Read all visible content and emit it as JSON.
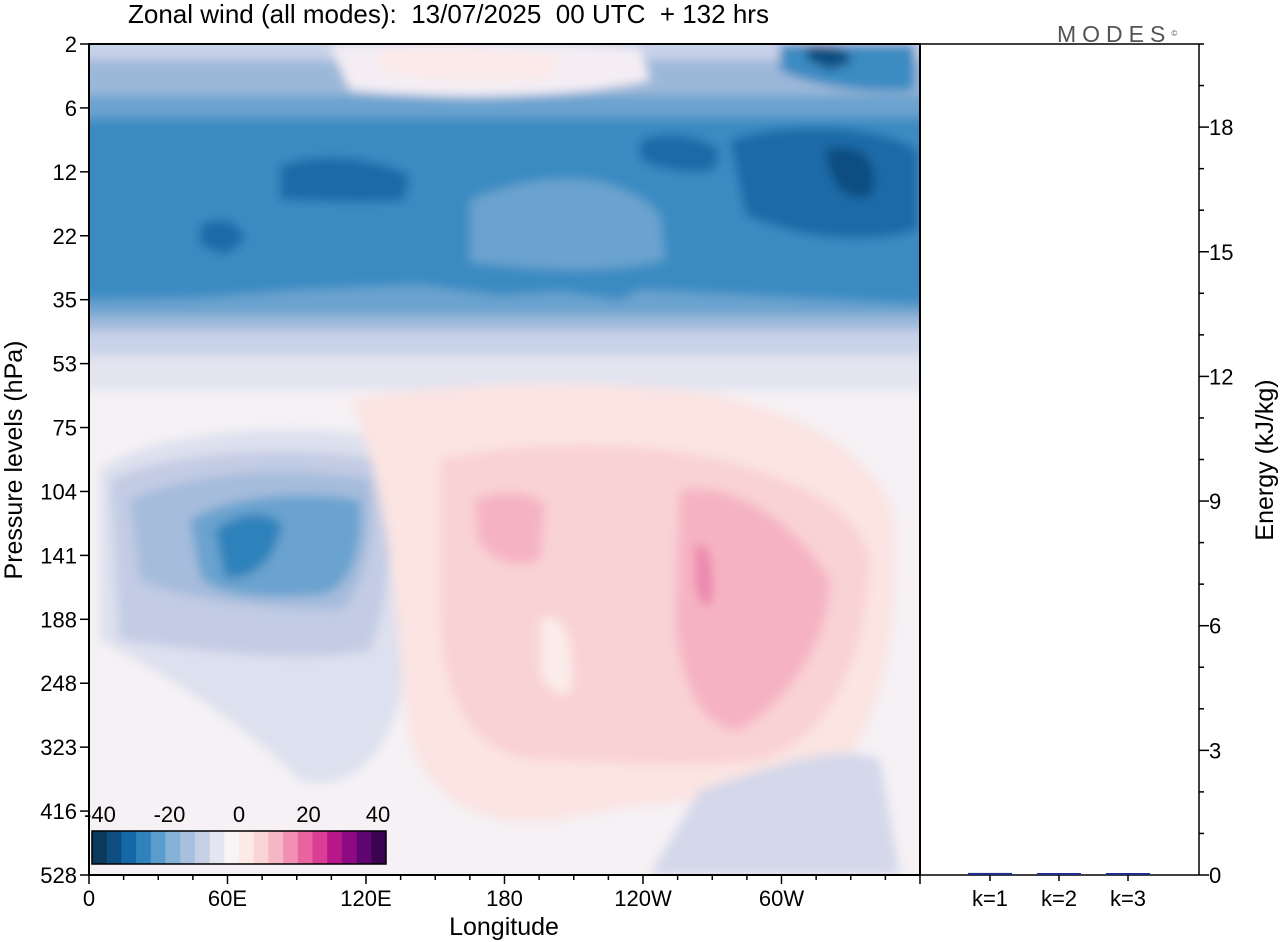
{
  "title": "Zonal wind (all modes):  13/07/2025  00 UTC  + 132 hrs",
  "brand": "MODES",
  "brand_mark": "©",
  "chart_data": [
    {
      "type": "heatmap",
      "variable": "Zonal wind",
      "xlabel": "Longitude",
      "ylabel": "Pressure levels (hPa)",
      "x_ticks": [
        "0",
        "60E",
        "120E",
        "180",
        "120W",
        "60W"
      ],
      "x_tick_degrees": [
        0,
        60,
        120,
        180,
        240,
        300
      ],
      "xlim": [
        0,
        360
      ],
      "y_ticks": [
        2,
        6,
        12,
        22,
        35,
        53,
        75,
        104,
        141,
        188,
        248,
        323,
        416,
        528
      ],
      "colorbar": {
        "tick_labels": [
          "-40",
          "-20",
          "0",
          "20",
          "40"
        ],
        "colors": [
          "#0b3a5c",
          "#0d4d80",
          "#1468a8",
          "#2f82bb",
          "#5a9dcc",
          "#86b2d8",
          "#a8c0e0",
          "#c5cfe6",
          "#e6e6f2",
          "#f7f3f7",
          "#fde9e6",
          "#fbd4d6",
          "#f7b6c4",
          "#f190b2",
          "#e7649f",
          "#d93d94",
          "#b8178a",
          "#8e0a82",
          "#5f056f",
          "#3b0452"
        ]
      }
    },
    {
      "type": "bar",
      "ylabel": "Energy (kJ/kg)",
      "categories": [
        "k=1",
        "k=2",
        "k=3"
      ],
      "values": [
        0.05,
        0.02,
        0.02
      ],
      "ylim": [
        0,
        20
      ],
      "y_ticks": [
        0,
        3,
        6,
        9,
        12,
        15,
        18
      ],
      "colors": [
        "#1d2d8c",
        "#1d2d8c",
        "#1d2d8c"
      ]
    }
  ]
}
